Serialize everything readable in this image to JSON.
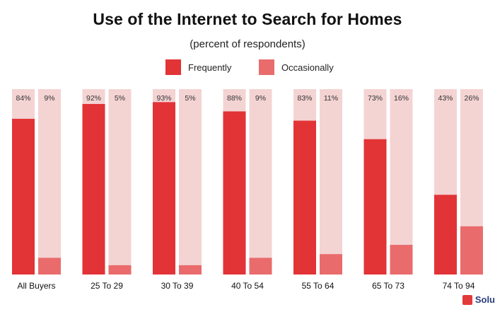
{
  "chart_data": {
    "type": "bar",
    "title": "Use of the Internet to Search for Homes",
    "subtitle": "(percent of respondents)",
    "categories": [
      "All Buyers",
      "25 To 29",
      "30 To 39",
      "40 To 54",
      "55 To 64",
      "65 To 73",
      "74 To 94"
    ],
    "series": [
      {
        "name": "Frequently",
        "color": "#e23336",
        "values": [
          84,
          92,
          93,
          88,
          83,
          73,
          43
        ],
        "labels": [
          "84%",
          "92%",
          "93%",
          "88%",
          "83%",
          "73%",
          "43%"
        ]
      },
      {
        "name": "Occasionally",
        "color": "#e96b6b",
        "values": [
          9,
          5,
          5,
          9,
          11,
          16,
          26
        ],
        "labels": [
          "9%",
          "5%",
          "5%",
          "9%",
          "11%",
          "16%",
          "26%"
        ]
      }
    ],
    "background_bar_color": "#f4d3d3",
    "ylim": [
      0,
      100
    ],
    "grid": false,
    "legend": "top-center"
  },
  "branding": {
    "text": "Solu"
  }
}
